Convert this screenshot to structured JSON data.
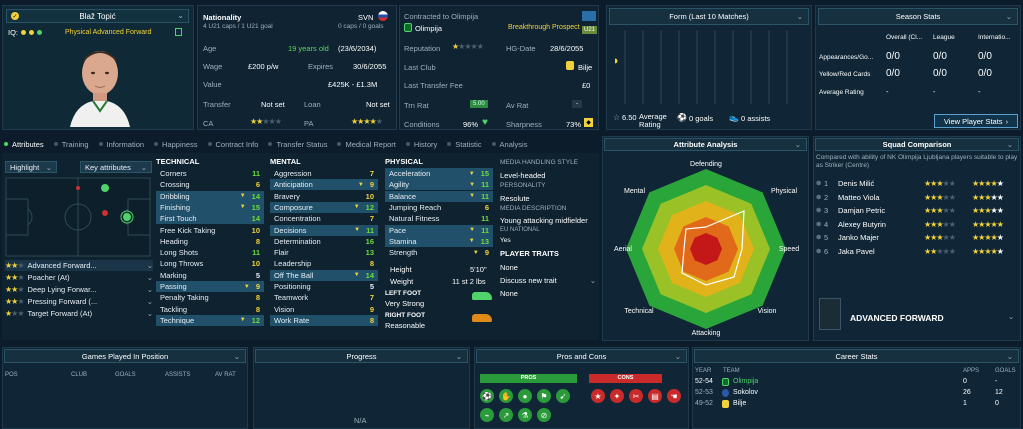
{
  "player": {
    "name": "Blaž Topić",
    "iq_label": "IQ:",
    "role": "Physical Advanced Forward",
    "nationality_label": "Nationality",
    "nationality_code": "SVN",
    "caps": "4 U21 caps / 1 U21 goal",
    "senior_caps": "0 caps / 0 goals",
    "contract_title": "Contracted to Olimpija",
    "club": "Olimpija",
    "prospect": "Breakthrough Prospect",
    "u21_badge": "U21"
  },
  "info": {
    "age_label": "Age",
    "age": "19 years old",
    "dob": "(23/6/2034)",
    "wage_label": "Wage",
    "wage": "£200 p/w",
    "expires_label": "Expires",
    "expires": "30/6/2055",
    "value_label": "Value",
    "value": "£425K - £1.3M",
    "transfer_label": "Transfer",
    "transfer": "Not set",
    "loan_label": "Loan",
    "loan": "Not set",
    "ca_label": "CA",
    "pa_label": "PA",
    "reputation_label": "Reputation",
    "hg_label": "HG-Date",
    "hg": "28/6/2055",
    "last_club_label": "Last Club",
    "last_club": "Bilje",
    "last_fee_label": "Last Transfer Fee",
    "last_fee": "£0",
    "trn_rat_label": "Trn Rat",
    "trn_rat": "5.00",
    "av_rat_label": "Av Rat",
    "av_rat": "-",
    "conditions_label": "Conditions",
    "conditions": "96%",
    "sharpness_label": "Sharpness",
    "sharpness": "73%"
  },
  "form": {
    "title": "Form (Last 10 Matches)",
    "avg_rating_value": "6.50",
    "avg_rating_label": "Average Rating",
    "goals": "0 goals",
    "assists": "0 assists"
  },
  "season": {
    "title": "Season Stats",
    "cols": [
      "Overall (Cl...",
      "League",
      "Internatio..."
    ],
    "rows": [
      {
        "label": "Appearances/Go...",
        "vals": [
          "0/0",
          "0/0",
          "0/0"
        ]
      },
      {
        "label": "Yellow/Red Cards",
        "vals": [
          "0/0",
          "0/0",
          "0/0"
        ]
      },
      {
        "label": "Average Rating",
        "vals": [
          "-",
          "-",
          "-"
        ]
      }
    ],
    "button": "View Player Stats"
  },
  "tabs": [
    "Attributes",
    "Training",
    "Information",
    "Happiness",
    "Contract Info",
    "Transfer Status",
    "Medical Report",
    "History",
    "Statistic",
    "Analysis"
  ],
  "left": {
    "highlight": "Highlight",
    "key_attributes": "Key attributes",
    "roles": [
      "Advanced Forward...",
      "Poacher (At)",
      "Deep Lying Forwar...",
      "Pressing Forward (...",
      "Target Forward (At)"
    ]
  },
  "technical": {
    "title": "TECHNICAL",
    "items": [
      {
        "n": "Corners",
        "v": "11"
      },
      {
        "n": "Crossing",
        "v": "6"
      },
      {
        "n": "Dribbling",
        "v": "14"
      },
      {
        "n": "Finishing",
        "v": "15"
      },
      {
        "n": "First Touch",
        "v": "14"
      },
      {
        "n": "Free Kick Taking",
        "v": "10"
      },
      {
        "n": "Heading",
        "v": "8"
      },
      {
        "n": "Long Shots",
        "v": "11"
      },
      {
        "n": "Long Throws",
        "v": "10"
      },
      {
        "n": "Marking",
        "v": "5"
      },
      {
        "n": "Passing",
        "v": "9"
      },
      {
        "n": "Penalty Taking",
        "v": "8"
      },
      {
        "n": "Tackling",
        "v": "8"
      },
      {
        "n": "Technique",
        "v": "12"
      }
    ]
  },
  "mental": {
    "title": "MENTAL",
    "items": [
      {
        "n": "Aggression",
        "v": "7"
      },
      {
        "n": "Anticipation",
        "v": "9"
      },
      {
        "n": "Bravery",
        "v": "10"
      },
      {
        "n": "Composure",
        "v": "12"
      },
      {
        "n": "Concentration",
        "v": "7"
      },
      {
        "n": "Decisions",
        "v": "11"
      },
      {
        "n": "Determination",
        "v": "16"
      },
      {
        "n": "Flair",
        "v": "13"
      },
      {
        "n": "Leadership",
        "v": "8"
      },
      {
        "n": "Off The Ball",
        "v": "14"
      },
      {
        "n": "Positioning",
        "v": "5"
      },
      {
        "n": "Teamwork",
        "v": "7"
      },
      {
        "n": "Vision",
        "v": "9"
      },
      {
        "n": "Work Rate",
        "v": "8"
      }
    ]
  },
  "physical": {
    "title": "PHYSICAL",
    "items": [
      {
        "n": "Acceleration",
        "v": "15"
      },
      {
        "n": "Agility",
        "v": "11"
      },
      {
        "n": "Balance",
        "v": "11"
      },
      {
        "n": "Jumping Reach",
        "v": "6"
      },
      {
        "n": "Natural Fitness",
        "v": "11"
      },
      {
        "n": "Pace",
        "v": "11"
      },
      {
        "n": "Stamina",
        "v": "13"
      },
      {
        "n": "Strength",
        "v": "9"
      }
    ],
    "height_label": "Height",
    "height": "5'10\"",
    "weight_label": "Weight",
    "weight": "11 st 2 lbs",
    "left_foot_label": "LEFT FOOT",
    "left_foot": "Very Strong",
    "right_foot_label": "RIGHT FOOT",
    "right_foot": "Reasonable"
  },
  "media": {
    "style_label": "MEDIA HANDLING STYLE",
    "style": "Level-headed",
    "personality_label": "PERSONALITY",
    "personality": "Resolute",
    "desc_label": "MEDIA DESCRIPTION",
    "desc": "Young attacking midfielder",
    "eu_label": "EU NATIONAL",
    "eu": "Yes",
    "traits_label": "PLAYER TRAITS",
    "traits": "None",
    "discuss": "Discuss new trait",
    "none2": "None"
  },
  "analysis": {
    "title": "Attribute Analysis",
    "labels": [
      "Defending",
      "Physical",
      "Speed",
      "Vision",
      "Attacking",
      "Technical",
      "Aerial",
      "Mental"
    ]
  },
  "squad": {
    "title": "Squad Comparison",
    "subtitle": "Compared with ability of NK Olimpija Ljubljana players suitable to play as Striker (Centre)",
    "rows": [
      {
        "rank": "1",
        "name": "Denis Milić"
      },
      {
        "rank": "2",
        "name": "Matteo Viola"
      },
      {
        "rank": "3",
        "name": "Damjan Petric"
      },
      {
        "rank": "4",
        "name": "Alexey Butyrin"
      },
      {
        "rank": "5",
        "name": "Janko Majer"
      },
      {
        "rank": "6",
        "name": "Jaka Pavel"
      }
    ],
    "position": "ADVANCED FORWARD"
  },
  "games": {
    "title": "Games Played In Position",
    "cols": [
      "POS",
      "CLUB",
      "GOALS",
      "ASSISTS",
      "AV RAT"
    ]
  },
  "progress": {
    "title": "Progress",
    "na": "N/A"
  },
  "proscons": {
    "title": "Pros and Cons",
    "pros": "PROS",
    "cons": "CONS"
  },
  "career": {
    "title": "Career Stats",
    "cols": [
      "YEAR",
      "TEAM",
      "APPS",
      "GOALS"
    ],
    "rows": [
      {
        "year": "52-54",
        "team": "Olimpija",
        "apps": "0",
        "goals": "-"
      },
      {
        "year": "52-53",
        "team": "Sokolov",
        "apps": "26",
        "goals": "12"
      },
      {
        "year": "49-52",
        "team": "Bilje",
        "apps": "1",
        "goals": "0"
      }
    ]
  },
  "colors": {
    "accent": "#4fd36a",
    "star": "#f2d23c",
    "bg": "#0c1c2a",
    "panel": "#102636"
  }
}
